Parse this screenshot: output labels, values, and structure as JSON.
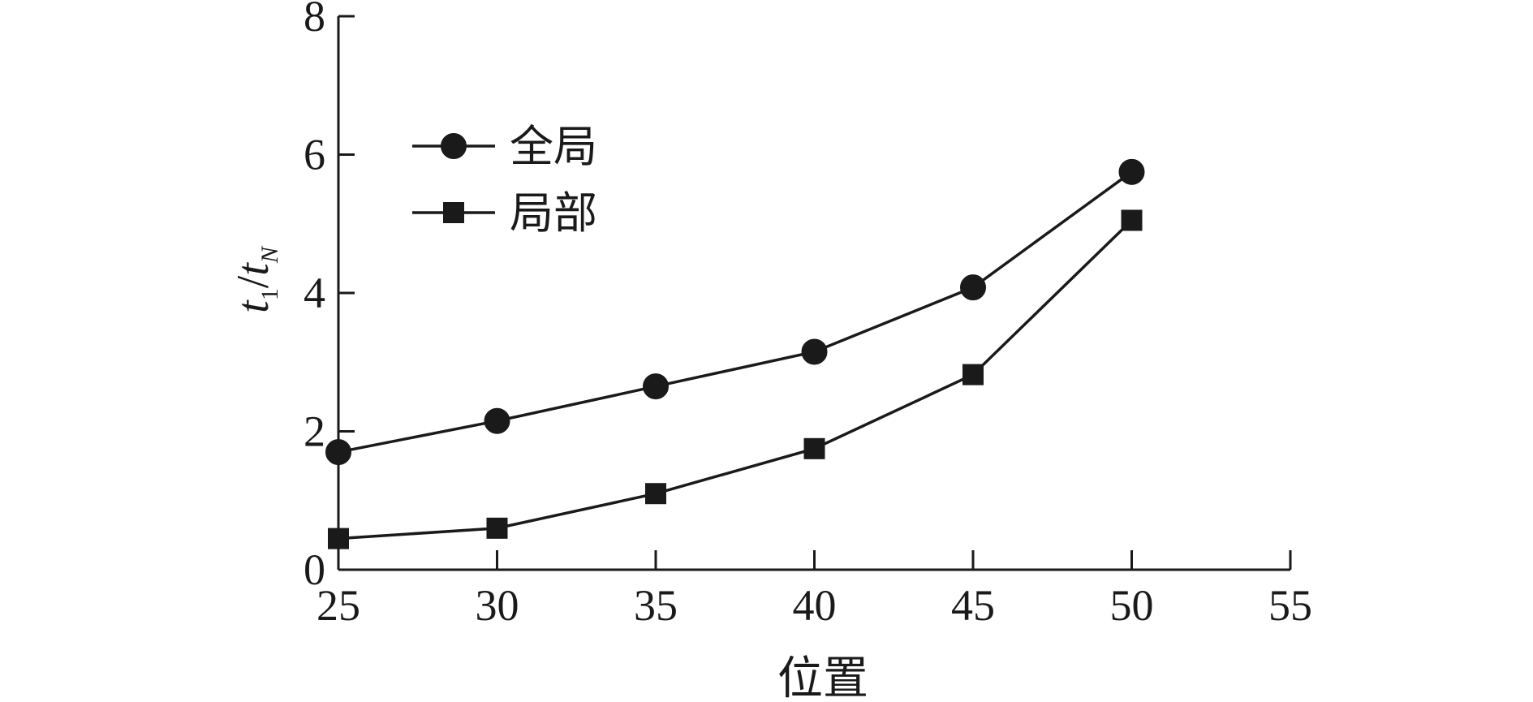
{
  "chart_data": {
    "type": "line",
    "xlabel": "位置",
    "ylabel_main": "t",
    "ylabel_sub1": "1",
    "ylabel_slash": "/",
    "ylabel_main2": "t",
    "ylabel_sub2": "N",
    "title": "",
    "x": [
      25,
      30,
      35,
      40,
      45,
      50
    ],
    "xlim": [
      25,
      55
    ],
    "ylim": [
      0,
      8
    ],
    "xticks": [
      25,
      30,
      35,
      40,
      45,
      50,
      55
    ],
    "yticks": [
      0,
      2,
      4,
      6,
      8
    ],
    "grid": false,
    "legend_position": "upper-left",
    "series": [
      {
        "name": "全局",
        "marker": "circle",
        "values": [
          1.7,
          2.15,
          2.65,
          3.15,
          4.08,
          5.75
        ]
      },
      {
        "name": "局部",
        "marker": "square",
        "values": [
          0.45,
          0.6,
          1.1,
          1.75,
          2.82,
          5.05
        ]
      }
    ],
    "colors": {
      "ink": "#1a1a1a"
    }
  }
}
